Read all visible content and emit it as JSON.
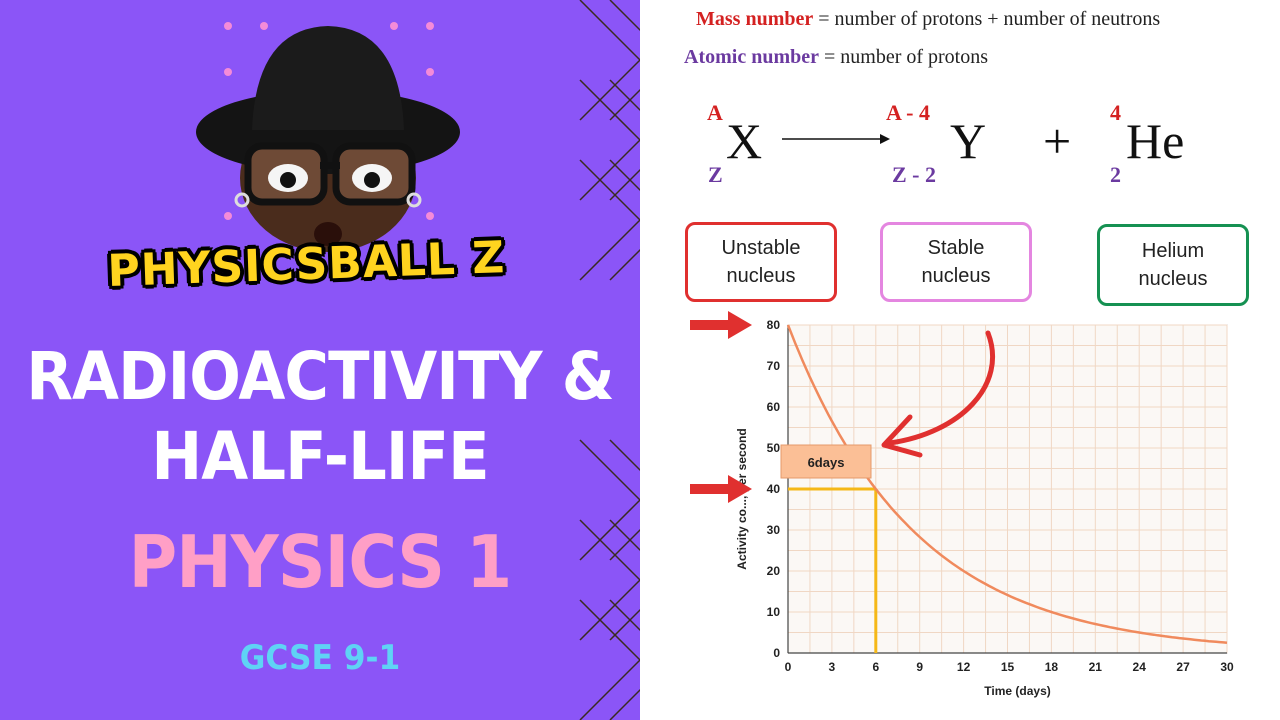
{
  "thumbnail": {
    "channel_logo": "PHYSICSBALL Z",
    "title_lines": [
      "RADIOACTIVITY &",
      "HALF-LIFE"
    ],
    "subject": "PHYSICS 1",
    "level": "GCSE 9-1",
    "colors": {
      "left_background": "#8b55f7",
      "logo_yellow": "#ffd41f",
      "subject_pink": "#ff9fc6",
      "level_cyan": "#5fd3f5",
      "accent_red": "#e0302f",
      "curve_orange": "#f08a5d",
      "guide_yellow": "#f5b817"
    }
  },
  "formulas": {
    "mass_number": {
      "term": "Mass number",
      "definition": "=  number of protons + number of neutrons"
    },
    "atomic_number": {
      "term": "Atomic number",
      "definition": "=  number of protons"
    }
  },
  "decay_equation": {
    "parent": {
      "symbol": "X",
      "mass": "A",
      "atomic": "Z"
    },
    "daughter": {
      "symbol": "Y",
      "mass": "A - 4",
      "atomic": "Z - 2"
    },
    "plus": "+",
    "alpha": {
      "symbol": "He",
      "mass": "4",
      "atomic": "2"
    }
  },
  "labels": {
    "unstable": "Unstable\nnucleus",
    "stable": "Stable\nnucleus",
    "helium": "Helium\nnucleus"
  },
  "chart_data": {
    "type": "line",
    "xlabel": "Time (days)",
    "ylabel": "Activity co..., per second",
    "x_ticks": [
      0,
      3,
      6,
      9,
      12,
      15,
      18,
      21,
      24,
      27,
      30
    ],
    "y_ticks": [
      0,
      10,
      20,
      30,
      40,
      50,
      60,
      70,
      80
    ],
    "xlim": [
      0,
      30
    ],
    "ylim": [
      0,
      80
    ],
    "grid": true,
    "series": [
      {
        "x": [
          0,
          3,
          6,
          9,
          12,
          15,
          18,
          21,
          24,
          27,
          30
        ],
        "y": [
          80,
          56.6,
          40,
          28.3,
          20,
          14.1,
          10,
          7.1,
          5,
          3.5,
          2.5
        ]
      }
    ],
    "half_life_label": "6days",
    "half_life_x": 6,
    "half_life_y": 40,
    "marked_values": [
      80,
      40
    ]
  }
}
